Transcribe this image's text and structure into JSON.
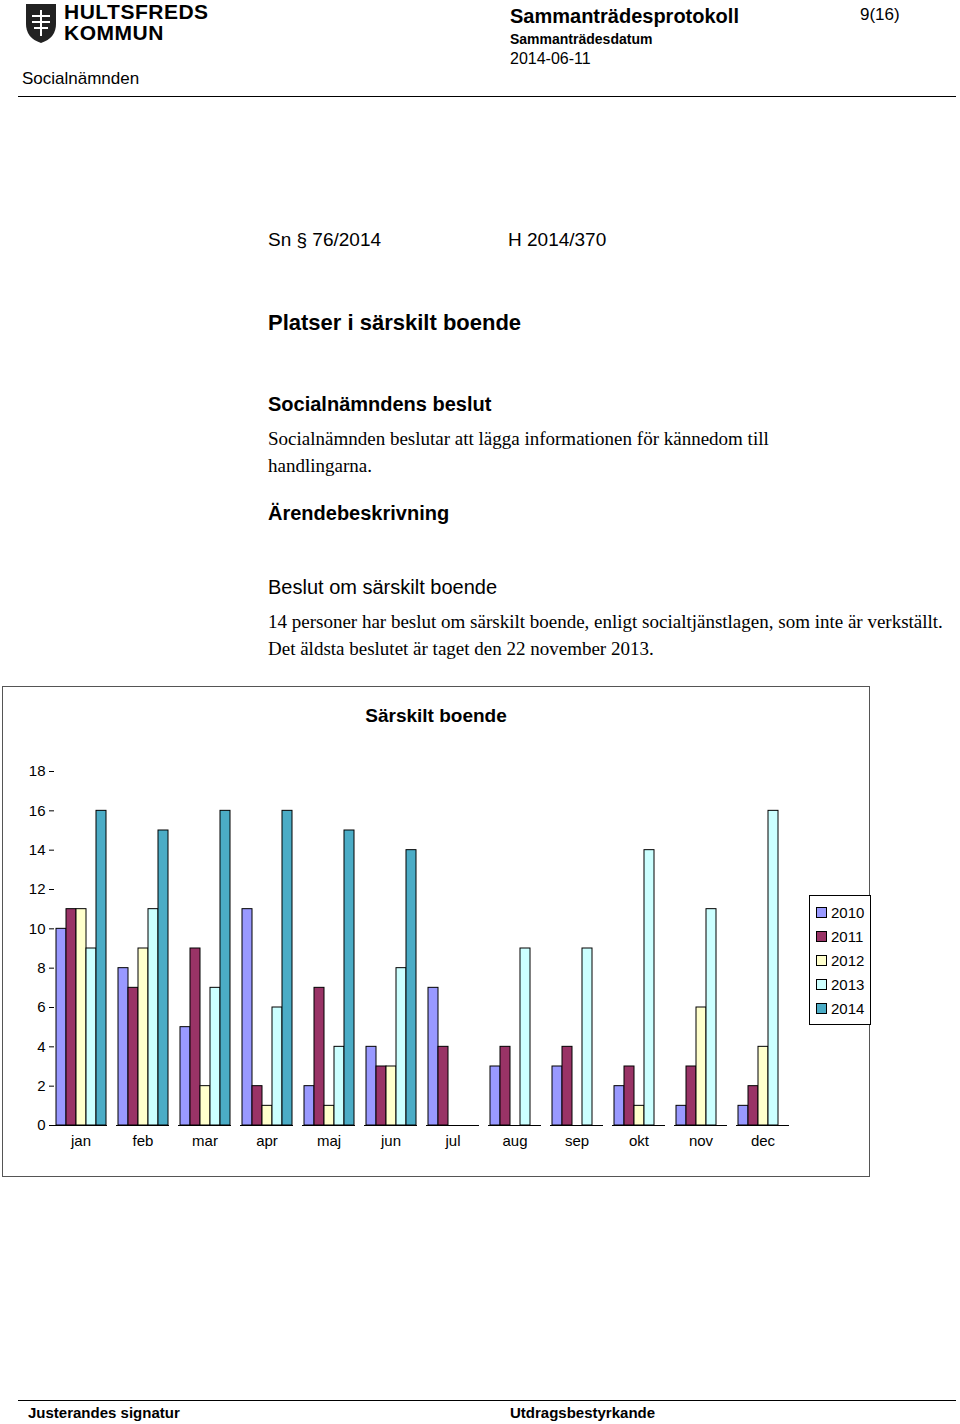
{
  "header": {
    "logo": [
      "HULTSFREDS",
      "KOMMUN"
    ],
    "committee": "Socialnämnden",
    "protocol": "Sammanträdesprotokoll",
    "date_label": "Sammanträdesdatum",
    "date": "2014-06-11",
    "page": "9(16)"
  },
  "case": {
    "number": "Sn § 76/2014",
    "reference": "H 2014/370",
    "title": "Platser i särskilt boende"
  },
  "sections": [
    {
      "heading": "Socialnämndens beslut",
      "text": "Socialnämnden beslutar att lägga informationen för kännedom till handlingarna."
    },
    {
      "heading": "Ärendebeskrivning"
    },
    {
      "heading": "Beslut om särskilt boende",
      "text": "14 personer har beslut om särskilt boende, enligt socialtjänstlagen, som inte är verkställt. Det äldsta beslutet är taget den 22 november 2013."
    }
  ],
  "chart_data": {
    "type": "bar",
    "title": "Särskilt boende",
    "categories": [
      "jan",
      "feb",
      "mar",
      "apr",
      "maj",
      "jun",
      "jul",
      "aug",
      "sep",
      "okt",
      "nov",
      "dec"
    ],
    "series": [
      {
        "name": "2010",
        "color": "#9999ff",
        "values": [
          10,
          8,
          5,
          11,
          2,
          4,
          7,
          3,
          3,
          2,
          1,
          1
        ]
      },
      {
        "name": "2011",
        "color": "#993366",
        "values": [
          11,
          7,
          9,
          2,
          7,
          3,
          4,
          4,
          4,
          3,
          3,
          2
        ]
      },
      {
        "name": "2012",
        "color": "#ffffcc",
        "values": [
          11,
          9,
          2,
          1,
          1,
          3,
          0,
          0,
          0,
          1,
          6,
          4
        ]
      },
      {
        "name": "2013",
        "color": "#ccffff",
        "values": [
          9,
          11,
          7,
          6,
          4,
          8,
          0,
          9,
          9,
          14,
          11,
          16
        ]
      },
      {
        "name": "2014",
        "color": "#4bacc6",
        "values": [
          16,
          15,
          16,
          16,
          15,
          14,
          null,
          null,
          null,
          null,
          null,
          null
        ]
      }
    ],
    "ylim": [
      0,
      18
    ],
    "yticks": [
      0,
      2,
      4,
      6,
      8,
      10,
      12,
      14,
      16,
      18
    ],
    "legend": "right",
    "grid": false
  },
  "footer": {
    "left": "Justerandes signatur",
    "right": "Utdragsbestyrkande"
  }
}
